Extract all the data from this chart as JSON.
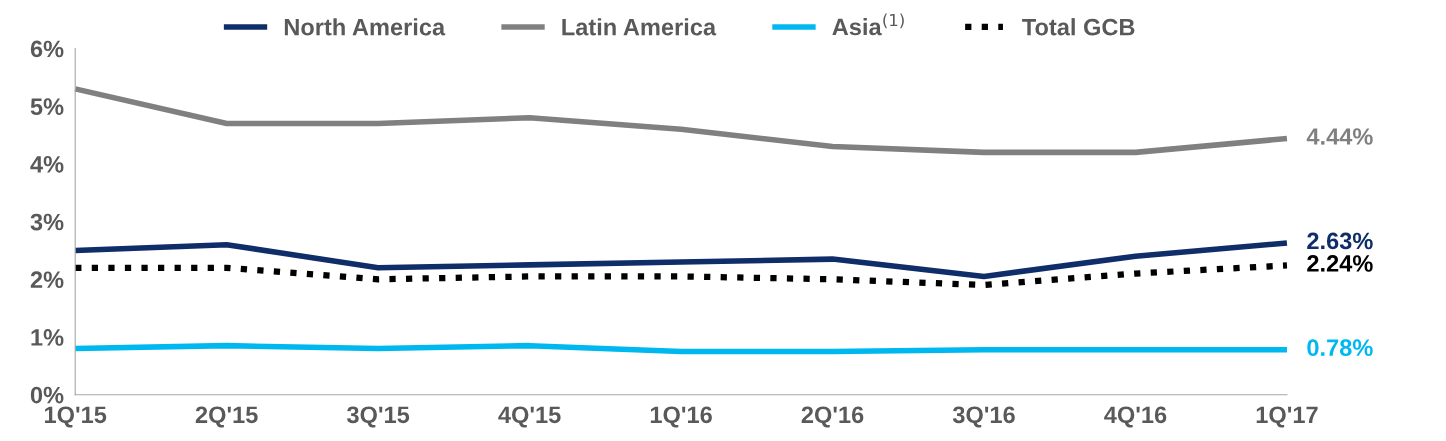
{
  "chart_data": {
    "type": "line",
    "categories": [
      "1Q'15",
      "2Q'15",
      "3Q'15",
      "4Q'15",
      "1Q'16",
      "2Q'16",
      "3Q'16",
      "4Q'16",
      "1Q'17"
    ],
    "ylim": [
      0,
      6
    ],
    "yticks": [
      {
        "value": 0,
        "label": "0%"
      },
      {
        "value": 1,
        "label": "1%"
      },
      {
        "value": 2,
        "label": "2%"
      },
      {
        "value": 3,
        "label": "3%"
      },
      {
        "value": 4,
        "label": "4%"
      },
      {
        "value": 5,
        "label": "5%"
      },
      {
        "value": 6,
        "label": "6%"
      }
    ],
    "grid": false,
    "legend": "top",
    "marker": "none",
    "series": [
      {
        "name": "North America",
        "color": "#0f2d69",
        "line_style": "solid",
        "values": [
          2.5,
          2.6,
          2.2,
          2.25,
          2.3,
          2.35,
          2.05,
          2.4,
          2.63
        ],
        "value_labels": [
          null,
          null,
          null,
          null,
          null,
          null,
          null,
          null,
          "2.63%"
        ]
      },
      {
        "name": "Latin America",
        "color": "#808080",
        "line_style": "solid",
        "values": [
          5.3,
          4.7,
          4.7,
          4.8,
          4.6,
          4.3,
          4.2,
          4.2,
          4.44
        ],
        "value_labels": [
          null,
          null,
          null,
          null,
          null,
          null,
          null,
          null,
          "4.44%"
        ]
      },
      {
        "name": "Asia$^{(1)}$",
        "color": "#00b8f0",
        "line_style": "solid",
        "values": [
          0.8,
          0.85,
          0.8,
          0.85,
          0.75,
          0.75,
          0.78,
          0.78,
          0.78
        ],
        "value_labels": [
          null,
          null,
          null,
          null,
          null,
          null,
          null,
          null,
          "0.78%"
        ]
      },
      {
        "name": "Total GCB",
        "color": "#000000",
        "line_style": "dotted",
        "values": [
          2.2,
          2.2,
          2.0,
          2.05,
          2.05,
          2.0,
          1.9,
          2.1,
          2.24
        ],
        "value_labels": [
          null,
          null,
          null,
          null,
          null,
          null,
          null,
          null,
          "2.24%"
        ]
      }
    ]
  }
}
